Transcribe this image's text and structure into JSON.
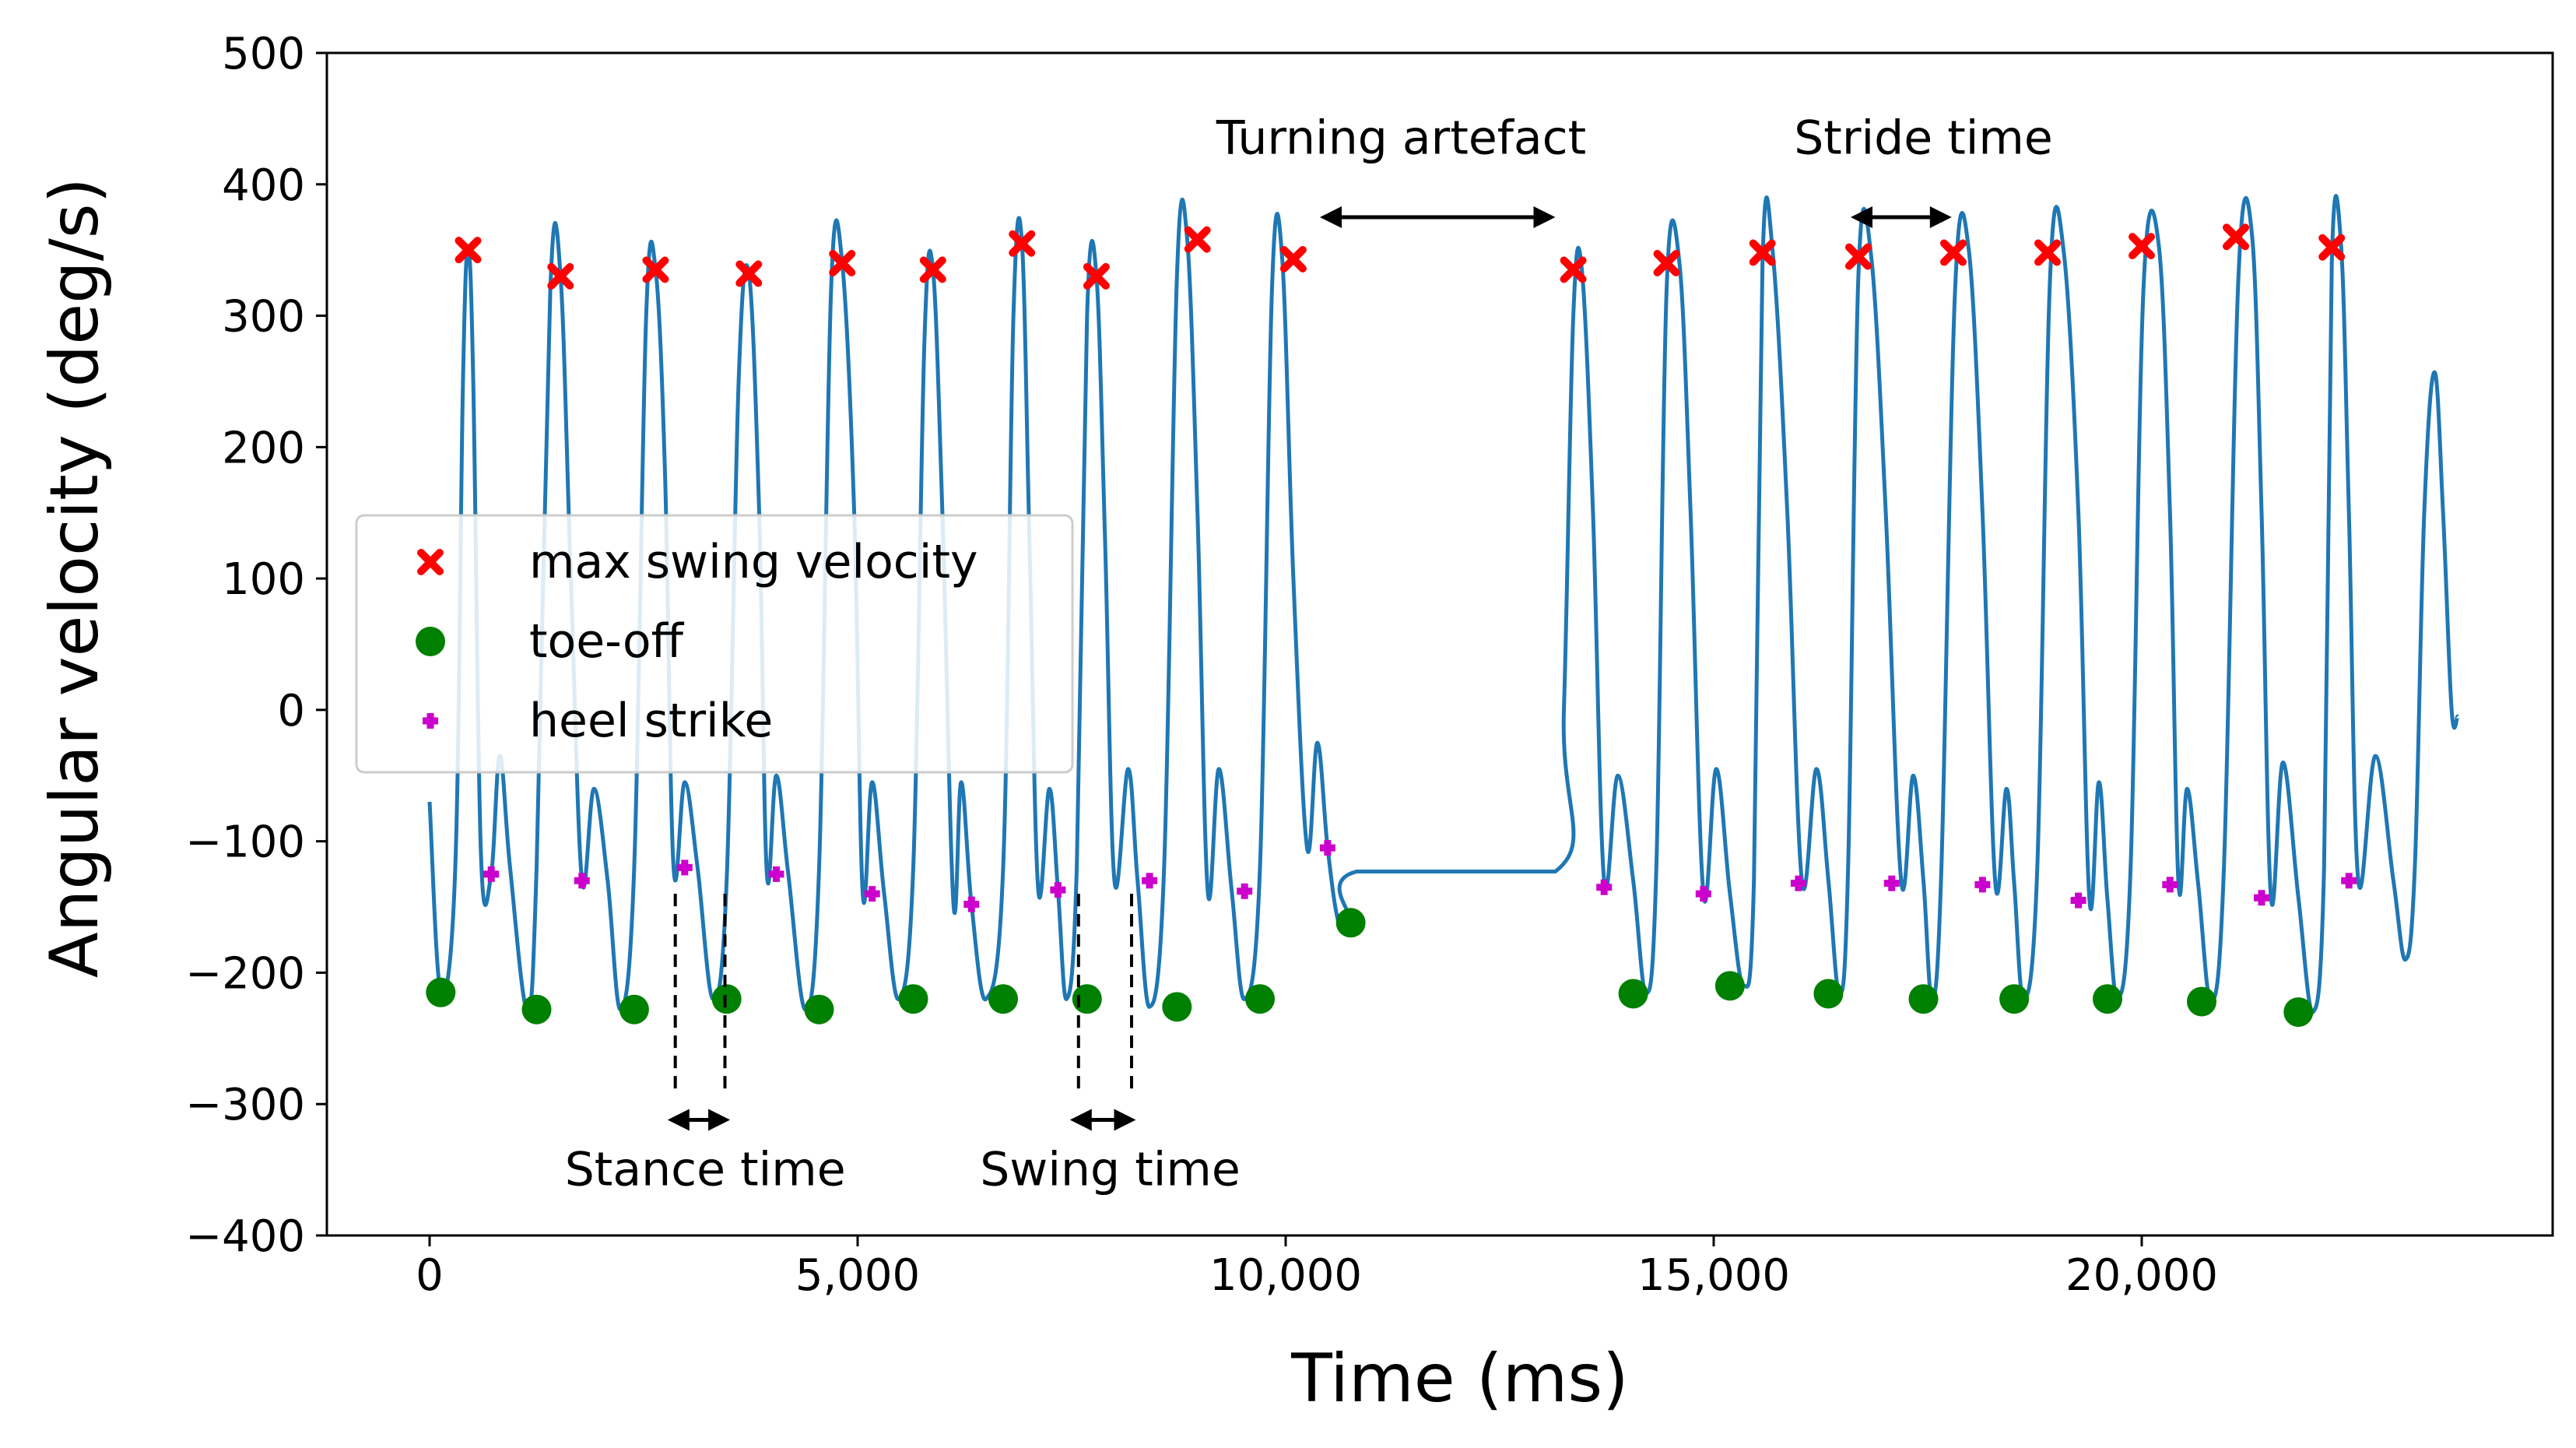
{
  "chart_data": {
    "type": "line",
    "title": "",
    "xlabel": "Time (ms)",
    "ylabel": "Angular velocity (deg/s)",
    "xlim": [
      -1200,
      24800
    ],
    "ylim": [
      -400,
      500
    ],
    "x_ticks": [
      0,
      5000,
      10000,
      15000,
      20000
    ],
    "x_tick_labels": [
      "0",
      "5,000",
      "10,000",
      "15,000",
      "20,000"
    ],
    "y_ticks": [
      -400,
      -300,
      -200,
      -100,
      0,
      100,
      200,
      300,
      400,
      500
    ],
    "y_tick_labels": [
      "−400",
      "−300",
      "−200",
      "−100",
      "0",
      "100",
      "200",
      "300",
      "400",
      "500"
    ],
    "grid": false,
    "legend_position": "center-left",
    "colors": {
      "signal": "#1f77b4",
      "max_swing": "#ff0000",
      "toe_off": "#008000",
      "heel_strike": "#cc00cc",
      "annotation": "#000000"
    },
    "series": [
      {
        "name": "",
        "kind": "line",
        "x": [
          0,
          130,
          300,
          390,
          450,
          510,
          600,
          720,
          820,
          940,
          1140,
          1250,
          1410,
          1530,
          1650,
          1780,
          1920,
          2080,
          2230,
          2390,
          2530,
          2640,
          2750,
          2850,
          2980,
          3130,
          3310,
          3470,
          3610,
          3730,
          3850,
          3940,
          4050,
          4190,
          4390,
          4550,
          4690,
          4820,
          4960,
          5060,
          5170,
          5310,
          5480,
          5650,
          5780,
          5880,
          5990,
          6120,
          6210,
          6330,
          6500,
          6700,
          6820,
          6920,
          7010,
          7110,
          7240,
          7340,
          7440,
          7560,
          7680,
          7790,
          7890,
          8000,
          8160,
          8270,
          8410,
          8580,
          8730,
          8850,
          8970,
          9090,
          9220,
          9370,
          9520,
          9700,
          9840,
          9960,
          10090,
          10250,
          10370,
          10490,
          10620,
          10760,
          10830,
          13150,
          13250,
          13360,
          13460,
          13590,
          13720,
          13880,
          14060,
          14210,
          14330,
          14450,
          14600,
          14730,
          14880,
          15030,
          15190,
          15350,
          15470,
          15570,
          15690,
          15860,
          16030,
          16200,
          16340,
          16470,
          16570,
          16690,
          16840,
          17010,
          17190,
          17330,
          17450,
          17550,
          17660,
          17820,
          17980,
          18140,
          18290,
          18420,
          18510,
          18620,
          18780,
          18930,
          19090,
          19260,
          19390,
          19500,
          19600,
          19720,
          19870,
          20020,
          20200,
          20330,
          20430,
          20530,
          20660,
          20810,
          20960,
          21130,
          21290,
          21400,
          21510,
          21650,
          21830,
          22000,
          22130,
          22220,
          22330,
          22420,
          22530,
          22730,
          22940,
          23080,
          23190,
          23300,
          23420,
          23520,
          23620,
          23690
        ],
        "y": [
          -70,
          -215,
          -120,
          250,
          350,
          250,
          -110,
          -125,
          -35,
          -120,
          -228,
          -120,
          320,
          330,
          100,
          -130,
          -60,
          -130,
          -228,
          -120,
          300,
          335,
          180,
          -120,
          -55,
          -120,
          -220,
          -130,
          250,
          332,
          150,
          -125,
          -50,
          -125,
          -228,
          -120,
          320,
          340,
          150,
          -140,
          -55,
          -140,
          -220,
          -120,
          280,
          335,
          150,
          -148,
          -55,
          -148,
          -220,
          -120,
          300,
          355,
          120,
          -137,
          -60,
          -137,
          -220,
          -120,
          300,
          330,
          130,
          -130,
          -45,
          -130,
          -226,
          -120,
          330,
          358,
          150,
          -138,
          -45,
          -138,
          -220,
          -120,
          320,
          343,
          100,
          -105,
          -25,
          -105,
          -162,
          -162,
          -123,
          -123,
          0,
          300,
          335,
          150,
          -130,
          -50,
          -130,
          -216,
          -120,
          320,
          340,
          150,
          -140,
          -45,
          -140,
          -210,
          -130,
          340,
          348,
          150,
          -130,
          -45,
          -130,
          -216,
          -120,
          330,
          345,
          150,
          -130,
          -50,
          -130,
          -220,
          -120,
          320,
          350,
          150,
          -132,
          -60,
          -132,
          -220,
          -120,
          330,
          348,
          150,
          -145,
          -55,
          -145,
          -220,
          -120,
          320,
          353,
          150,
          -133,
          -60,
          -133,
          -222,
          -120,
          330,
          360,
          150,
          -143,
          -40,
          -143,
          -230,
          -120,
          340,
          352,
          150,
          -130,
          -35,
          -130,
          -190,
          -120,
          150,
          257,
          150,
          0,
          -5
        ]
      },
      {
        "name": "max swing velocity",
        "kind": "marker",
        "marker": "x",
        "x": [
          450,
          1530,
          2640,
          3730,
          4820,
          5880,
          6920,
          7790,
          8970,
          10090,
          13360,
          14450,
          15570,
          16690,
          17800,
          18900,
          20000,
          21100,
          22220
        ],
        "y": [
          350,
          330,
          335,
          332,
          340,
          335,
          355,
          330,
          358,
          343,
          335,
          340,
          348,
          345,
          348,
          348,
          353,
          360,
          352
        ]
      },
      {
        "name": "toe-off",
        "kind": "marker",
        "marker": "circle",
        "x": [
          130,
          1250,
          2390,
          3470,
          4550,
          5650,
          6700,
          7680,
          8730,
          9700,
          10760,
          14060,
          15190,
          16340,
          17450,
          18510,
          19600,
          20700,
          21830
        ],
        "y": [
          -215,
          -228,
          -228,
          -220,
          -228,
          -220,
          -220,
          -220,
          -226,
          -220,
          -162,
          -216,
          -210,
          -216,
          -220,
          -220,
          -220,
          -222,
          -230
        ]
      },
      {
        "name": "heel strike",
        "kind": "marker",
        "marker": "plus",
        "x": [
          720,
          1780,
          2980,
          4050,
          5170,
          6330,
          7340,
          8410,
          9520,
          10490,
          13720,
          14880,
          15990,
          17080,
          18140,
          19260,
          20330,
          21400,
          22420
        ],
        "y": [
          -125,
          -130,
          -120,
          -125,
          -140,
          -148,
          -137,
          -130,
          -138,
          -105,
          -135,
          -140,
          -132,
          -132,
          -133,
          -145,
          -133,
          -143,
          -130
        ]
      }
    ],
    "annotations": [
      {
        "text": "Turning artefact",
        "x1": 10400,
        "x2": 13150,
        "y": 375,
        "label_x": 11350,
        "label_y": 435
      },
      {
        "text": "Stride time",
        "x1": 16600,
        "x2": 17780,
        "y": 375,
        "label_x": 17450,
        "label_y": 435
      },
      {
        "text": "Stance time",
        "x1": 2780,
        "x2": 3510,
        "y": -312,
        "label_x": 3220,
        "label_y": -350,
        "guides": [
          2870,
          3450
        ]
      },
      {
        "text": "Swing time",
        "x1": 7480,
        "x2": 8250,
        "y": -312,
        "label_x": 7950,
        "label_y": -350,
        "guides": [
          7580,
          8200
        ]
      }
    ]
  }
}
